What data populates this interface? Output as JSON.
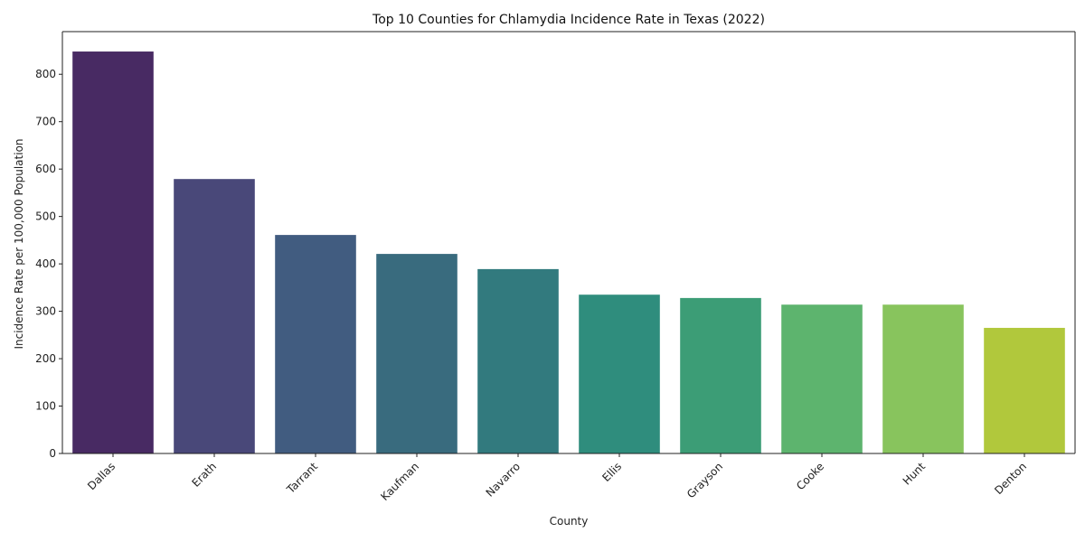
{
  "chart_data": {
    "type": "bar",
    "title": "Top 10 Counties for Chlamydia Incidence Rate in Texas (2022)",
    "xlabel": "County",
    "ylabel": "Incidence Rate per 100,000 Population",
    "categories": [
      "Dallas",
      "Erath",
      "Tarrant",
      "Kaufman",
      "Navarro",
      "Ellis",
      "Grayson",
      "Cooke",
      "Hunt",
      "Denton"
    ],
    "values": [
      848,
      579,
      461,
      421,
      389,
      335,
      328,
      314,
      314,
      265
    ],
    "ylim": [
      0,
      890
    ],
    "yticks": [
      0,
      100,
      200,
      300,
      400,
      500,
      600,
      700,
      800
    ],
    "grid": false,
    "colors": [
      "#482a63",
      "#494879",
      "#415c80",
      "#396b7e",
      "#327a7e",
      "#2f8d7d",
      "#3c9d76",
      "#5db46e",
      "#88c45d",
      "#b1c83c"
    ]
  }
}
